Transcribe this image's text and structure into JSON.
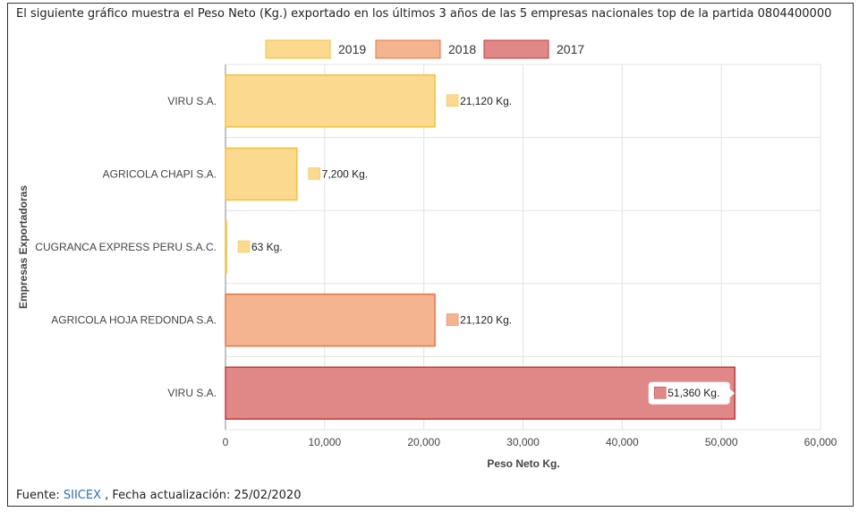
{
  "header": {
    "description": "El siguiente gráfico muestra el Peso Neto (Kg.) exportado en los últimos 3 años de las 5 empresas nacionales top de la partida 0804400000"
  },
  "footer": {
    "source_label": "Fuente:",
    "source_link": "SIICEX",
    "update_text": ", Fecha actualización: 25/02/2020"
  },
  "colors": {
    "2019_fill": "#fbda8f",
    "2019_stroke": "#f3c13a",
    "2018_fill": "#f4b48f",
    "2018_stroke": "#e8743f",
    "2017_fill": "#e08787",
    "2017_stroke": "#c73a3a"
  },
  "chart_data": {
    "type": "bar",
    "orientation": "horizontal",
    "title": "",
    "xlabel": "Peso Neto Kg.",
    "ylabel": "Empresas Exportadoras",
    "xlim": [
      0,
      60000
    ],
    "xticks": [
      "0",
      "10,000",
      "20,000",
      "30,000",
      "40,000",
      "50,000",
      "60,000"
    ],
    "grid": true,
    "legend_position": "top",
    "legend": [
      "2019",
      "2018",
      "2017"
    ],
    "bars": [
      {
        "category": "VIRU S.A.",
        "series": "2019",
        "value": 21120,
        "label": "21,120 Kg."
      },
      {
        "category": "AGRICOLA CHAPI S.A.",
        "series": "2019",
        "value": 7200,
        "label": "7,200 Kg."
      },
      {
        "category": "CUGRANCA EXPRESS PERU S.A.C.",
        "series": "2019",
        "value": 63,
        "label": "63 Kg."
      },
      {
        "category": "AGRICOLA HOJA REDONDA S.A.",
        "series": "2018",
        "value": 21120,
        "label": "21,120 Kg."
      },
      {
        "category": "VIRU S.A.",
        "series": "2017",
        "value": 51360,
        "label": "51,360 Kg."
      }
    ]
  }
}
